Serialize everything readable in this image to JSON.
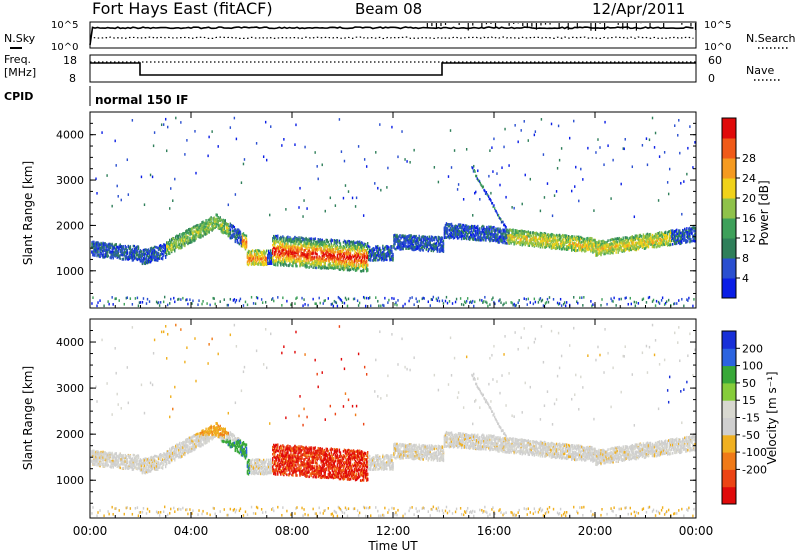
{
  "header": {
    "site": "Fort Hays East (fitACF)",
    "beam": "Beam 08",
    "date": "12/Apr/2011"
  },
  "colors": {
    "power_scale": [
      "#0a1ee6",
      "#2a4fd0",
      "#2f7f5a",
      "#3ea05a",
      "#8fc24a",
      "#f0d21a",
      "#f59a20",
      "#f05a18",
      "#e00a0a"
    ],
    "velocity_scale": [
      "#1830d8",
      "#2c64e0",
      "#38a838",
      "#86cc3a",
      "#d8d8d0",
      "#cfcfcf",
      "#f0b020",
      "#f07a18",
      "#ec4414",
      "#e00a0a"
    ]
  },
  "top_panels": {
    "nsky_label": "N.Sky",
    "nsearch_label": "N.Search",
    "nsky_ticks": [
      "10^5",
      "10^0"
    ],
    "nsearch_ticks": [
      "10^5",
      "10^0"
    ],
    "freq_label_1": "Freq.",
    "freq_label_2": "[MHz]",
    "freq_ticks": [
      "18",
      "8"
    ],
    "nave_label": "Nave",
    "nave_ticks": [
      "60",
      "0"
    ],
    "cpid_label": "CPID",
    "cpid_text": "normal 150 IF"
  },
  "chart_data": [
    {
      "type": "heatmap",
      "name": "power",
      "ylabel": "Slant Range [km]",
      "y_ticks": [
        1000,
        2000,
        3000,
        4000
      ],
      "ylim": [
        180,
        4500
      ],
      "colorbar_label": "Power [dB]",
      "colorbar_ticks": [
        "4",
        "8",
        "12",
        "16",
        "20",
        "24",
        "28"
      ],
      "colorbar_range": [
        0,
        32
      ]
    },
    {
      "type": "heatmap",
      "name": "velocity",
      "ylabel": "Slant Range [km]",
      "y_ticks": [
        1000,
        2000,
        3000,
        4000
      ],
      "ylim": [
        180,
        4500
      ],
      "colorbar_label": "Velocity [m s⁻¹]",
      "colorbar_ticks": [
        "200",
        "100",
        "50",
        "15",
        "-15",
        "-50",
        "-100",
        "-200"
      ]
    }
  ],
  "x_axis": {
    "label": "Time UT",
    "ticks": [
      "00:00",
      "04:00",
      "08:00",
      "12:00",
      "16:00",
      "20:00",
      "00:00"
    ]
  }
}
